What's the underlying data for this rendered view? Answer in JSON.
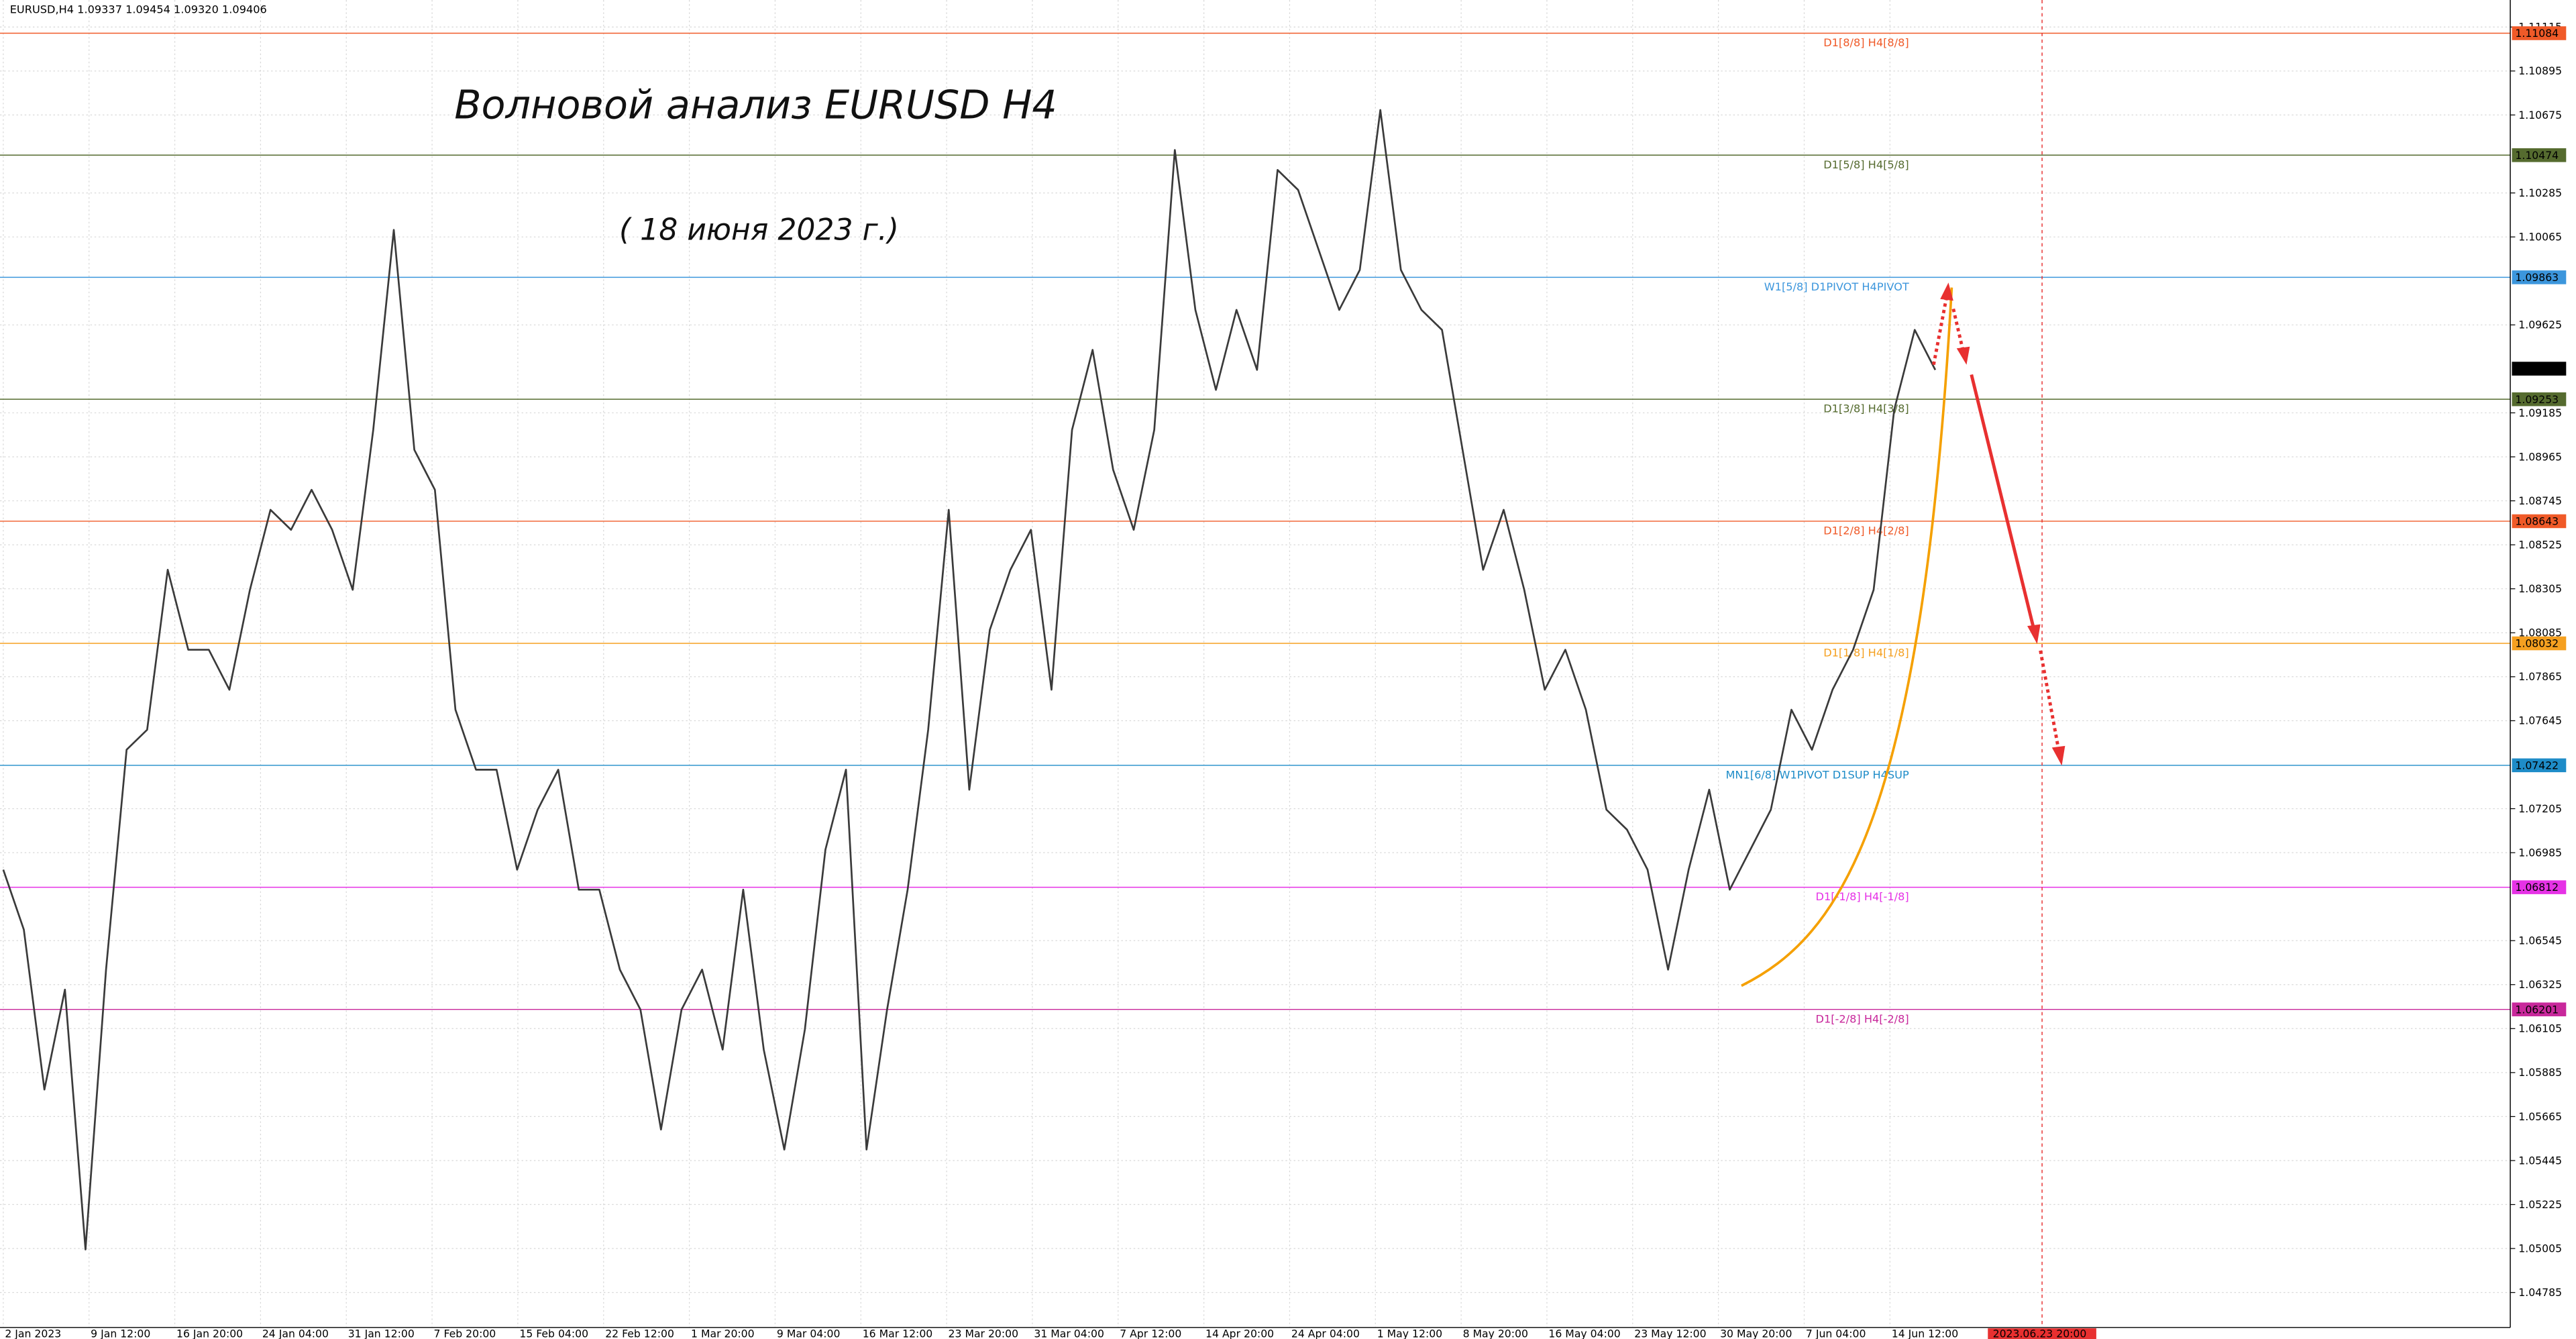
{
  "chart_data": {
    "type": "line",
    "header": "EURUSD,H4  1.09337 1.09454 1.09320 1.09406",
    "title": "Волновой анализ EURUSD H4",
    "subtitle": "( 18 июня 2023 г.)",
    "color": "#3a3a3a",
    "values": [
      1.069,
      1.066,
      1.058,
      1.063,
      1.05,
      1.064,
      1.075,
      1.076,
      1.084,
      1.08,
      1.08,
      1.078,
      1.083,
      1.087,
      1.086,
      1.088,
      1.086,
      1.083,
      1.091,
      1.101,
      1.09,
      1.088,
      1.077,
      1.074,
      1.074,
      1.069,
      1.072,
      1.074,
      1.068,
      1.068,
      1.064,
      1.062,
      1.056,
      1.062,
      1.064,
      1.06,
      1.068,
      1.06,
      1.055,
      1.061,
      1.07,
      1.074,
      1.055,
      1.062,
      1.068,
      1.076,
      1.087,
      1.073,
      1.081,
      1.084,
      1.086,
      1.078,
      1.091,
      1.095,
      1.089,
      1.086,
      1.091,
      1.105,
      1.097,
      1.093,
      1.097,
      1.094,
      1.104,
      1.103,
      1.1,
      1.097,
      1.099,
      1.107,
      1.099,
      1.097,
      1.096,
      1.09,
      1.084,
      1.087,
      1.083,
      1.078,
      1.08,
      1.077,
      1.072,
      1.071,
      1.069,
      1.064,
      1.069,
      1.073,
      1.068,
      1.07,
      1.072,
      1.077,
      1.075,
      1.078,
      1.08,
      1.083,
      1.092,
      1.096,
      1.094
    ],
    "x_axis_labels": [
      "2 Jan 2023",
      "9 Jan 12:00",
      "16 Jan 20:00",
      "24 Jan 04:00",
      "31 Jan 12:00",
      "7 Feb 20:00",
      "15 Feb 04:00",
      "22 Feb 12:00",
      "1 Mar 20:00",
      "9 Mar 04:00",
      "16 Mar 12:00",
      "23 Mar 20:00",
      "31 Mar 04:00",
      "7 Apr 12:00",
      "14 Apr 20:00",
      "24 Apr 04:00",
      "1 May 12:00",
      "8 May 20:00",
      "16 May 04:00",
      "23 May 12:00",
      "30 May 20:00",
      "7 Jun 04:00",
      "14 Jun 12:00"
    ],
    "cursor_label": "2023.06.23 20:00",
    "ylim": [
      1.0461,
      1.1125
    ],
    "yticks": [
      1.11115,
      1.10895,
      1.10675,
      1.10285,
      1.10065,
      1.09625,
      1.09185,
      1.08965,
      1.08745,
      1.08525,
      1.08305,
      1.08085,
      1.07865,
      1.07645,
      1.07205,
      1.06985,
      1.06545,
      1.06325,
      1.06105,
      1.05885,
      1.05665,
      1.05445,
      1.05225,
      1.05005,
      1.04785
    ],
    "grid": true,
    "current_price": 1.09406,
    "levels": [
      {
        "name": "D1[8/8] H4[8/8]",
        "value": 1.11084,
        "color": "#f05a28"
      },
      {
        "name": "D1[5/8] H4[5/8]",
        "value": 1.10474,
        "color": "#556b2f"
      },
      {
        "name": "W1[5/8] D1PIVOT H4PIVOT",
        "value": 1.09863,
        "color": "#3c96dc"
      },
      {
        "name": "D1[3/8] H4[3/8]",
        "value": 1.09253,
        "color": "#556b2f"
      },
      {
        "name": "D1[2/8] H4[2/8]",
        "value": 1.08643,
        "color": "#f05a28"
      },
      {
        "name": "D1[1/8] H4[1/8]",
        "value": 1.08032,
        "color": "#f5a020"
      },
      {
        "name": "MN1[6/8] W1PIVOT D1SUP H4SUP",
        "value": 1.07422,
        "color": "#1e8cc8"
      },
      {
        "name": "D1[-1/8] H4[-1/8]",
        "value": 1.06812,
        "color": "#e632e6"
      },
      {
        "name": "D1[-2/8] H4[-2/8]",
        "value": 1.06201,
        "color": "#c8289b"
      }
    ]
  }
}
